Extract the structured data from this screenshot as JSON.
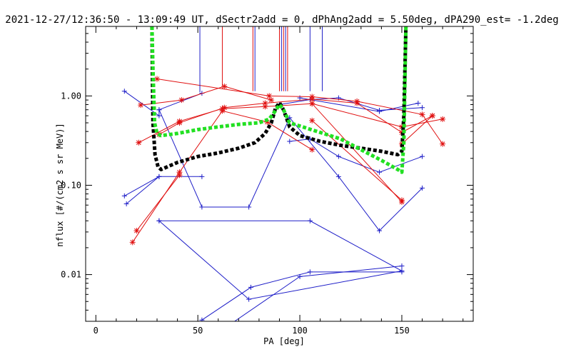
{
  "chart_data": {
    "type": "line",
    "title": "2021-12-27/12:36:50 - 13:09:49 UT, dSectr2add = 0, dPhAng2add = 5.50deg, dPA290_est=  -1.2deg",
    "xlabel": "PA [deg]",
    "ylabel": "nflux [#/(cm2 s sr MeV)]",
    "xlim": [
      -5,
      185
    ],
    "ylim": [
      0.003,
      6
    ],
    "yscale": "log",
    "grid": false,
    "x_ticks": [
      {
        "value": 0,
        "label": "0"
      },
      {
        "value": 50,
        "label": "50"
      },
      {
        "value": 100,
        "label": "100"
      },
      {
        "value": 150,
        "label": "150"
      }
    ],
    "y_ticks": [
      {
        "value": 0.01,
        "label": "0.01"
      },
      {
        "value": 0.1,
        "label": "0.10"
      },
      {
        "value": 1,
        "label": "1.00"
      }
    ],
    "colors": {
      "blue": "#1e1ec8",
      "red": "#e01010",
      "black": "#000000",
      "green": "#22e022"
    },
    "series": [
      {
        "color": "blue",
        "marker": "plus",
        "style": "thin",
        "segments": [
          [
            [
              14,
              1.13
            ],
            [
              31,
              0.6
            ],
            [
              31,
              0.7
            ],
            [
              52,
              1.07
            ]
          ],
          [
            [
              31,
              0.7
            ],
            [
              52,
              0.057
            ],
            [
              75,
              0.057
            ],
            [
              95,
              0.57
            ],
            [
              119,
              0.125
            ],
            [
              139,
              0.031
            ],
            [
              160,
              0.093
            ]
          ],
          [
            [
              14,
              0.076
            ],
            [
              31,
              0.125
            ],
            [
              52,
              0.125
            ]
          ],
          [
            [
              15,
              0.062
            ],
            [
              31,
              0.125
            ]
          ],
          [
            [
              31,
              0.04
            ],
            [
              105,
              0.04
            ],
            [
              150,
              0.011
            ],
            [
              75,
              0.0053
            ],
            [
              31,
              0.04
            ]
          ],
          [
            [
              52,
              0.0031
            ],
            [
              76,
              0.0072
            ],
            [
              105,
              0.0107
            ],
            [
              150,
              0.0107
            ]
          ],
          [
            [
              63,
              0.0025
            ],
            [
              100,
              0.0095
            ],
            [
              150,
              0.0125
            ]
          ],
          [
            [
              90,
              0.8
            ],
            [
              105,
              0.91
            ],
            [
              119,
              0.95
            ],
            [
              139,
              0.69
            ],
            [
              160,
              0.74
            ]
          ],
          [
            [
              95,
              0.31
            ],
            [
              105,
              0.33
            ],
            [
              119,
              0.21
            ],
            [
              139,
              0.14
            ],
            [
              160,
              0.21
            ]
          ],
          [
            [
              100,
              0.95
            ],
            [
              139,
              0.67
            ],
            [
              158,
              0.83
            ]
          ]
        ]
      },
      {
        "color": "red",
        "marker": "asterisk",
        "style": "thin",
        "segments": [
          [
            [
              22,
              0.79
            ],
            [
              42,
              0.9
            ],
            [
              63,
              1.28
            ],
            [
              86,
              0.9
            ]
          ],
          [
            [
              30,
              1.55
            ],
            [
              85,
              1.0
            ],
            [
              106,
              0.98
            ],
            [
              128,
              0.87
            ],
            [
              160,
              0.62
            ],
            [
              170,
              0.29
            ]
          ],
          [
            [
              31,
              0.37
            ],
            [
              41,
              0.5
            ],
            [
              63,
              0.74
            ],
            [
              83,
              0.83
            ],
            [
              106,
              0.92
            ],
            [
              128,
              0.83
            ],
            [
              150,
              0.39
            ],
            [
              165,
              0.6
            ]
          ],
          [
            [
              21,
              0.3
            ],
            [
              41,
              0.52
            ],
            [
              62,
              0.72
            ],
            [
              83,
              0.76
            ],
            [
              106,
              0.82
            ],
            [
              150,
              0.065
            ]
          ],
          [
            [
              18,
              0.023
            ],
            [
              41,
              0.14
            ],
            [
              62,
              0.68
            ],
            [
              84,
              0.51
            ],
            [
              106,
              0.25
            ]
          ],
          [
            [
              20,
              0.031
            ],
            [
              41,
              0.13
            ]
          ],
          [
            [
              106,
              0.53
            ],
            [
              150,
              0.068
            ]
          ],
          [
            [
              106,
              0.82
            ],
            [
              150,
              0.45
            ],
            [
              170,
              0.55
            ]
          ],
          [
            [
              150,
              0.29
            ],
            [
              165,
              0.6
            ]
          ]
        ]
      }
    ],
    "model_curves": [
      {
        "color": "black",
        "points": [
          [
            27.5,
            6
          ],
          [
            28,
            0.5
          ],
          [
            29,
            0.22
          ],
          [
            30.5,
            0.16
          ],
          [
            32,
            0.15
          ],
          [
            40,
            0.18
          ],
          [
            50,
            0.21
          ],
          [
            60,
            0.23
          ],
          [
            70,
            0.26
          ],
          [
            78,
            0.3
          ],
          [
            83,
            0.38
          ],
          [
            86,
            0.5
          ],
          [
            88,
            0.72
          ],
          [
            90,
            0.84
          ],
          [
            92,
            0.7
          ],
          [
            95,
            0.45
          ],
          [
            100,
            0.36
          ],
          [
            110,
            0.31
          ],
          [
            120,
            0.28
          ],
          [
            130,
            0.26
          ],
          [
            140,
            0.24
          ],
          [
            148,
            0.22
          ],
          [
            150,
            0.24
          ],
          [
            151,
            0.6
          ],
          [
            152,
            6
          ]
        ]
      },
      {
        "color": "green",
        "points": [
          [
            27.5,
            6
          ],
          [
            28,
            2.0
          ],
          [
            28.8,
            0.5
          ],
          [
            30,
            0.38
          ],
          [
            32,
            0.36
          ],
          [
            40,
            0.38
          ],
          [
            50,
            0.42
          ],
          [
            60,
            0.45
          ],
          [
            70,
            0.48
          ],
          [
            80,
            0.5
          ],
          [
            85,
            0.55
          ],
          [
            88,
            0.68
          ],
          [
            90,
            0.8
          ],
          [
            92,
            0.7
          ],
          [
            95,
            0.5
          ],
          [
            100,
            0.46
          ],
          [
            110,
            0.39
          ],
          [
            120,
            0.33
          ],
          [
            130,
            0.25
          ],
          [
            140,
            0.19
          ],
          [
            148,
            0.15
          ],
          [
            150,
            0.14
          ],
          [
            151,
            0.3
          ],
          [
            152,
            6
          ]
        ]
      }
    ],
    "vertical_ticks": [
      {
        "x": 51,
        "y_low": 1.1,
        "color": "blue"
      },
      {
        "x": 62,
        "y_low": 1.3,
        "color": "red"
      },
      {
        "x": 77,
        "y_low": 1.13,
        "color": "red"
      },
      {
        "x": 78,
        "y_low": 1.13,
        "color": "blue"
      },
      {
        "x": 90,
        "y_low": 1.13,
        "color": "red"
      },
      {
        "x": 91,
        "y_low": 1.13,
        "color": "blue"
      },
      {
        "x": 92,
        "y_low": 1.13,
        "color": "red"
      },
      {
        "x": 93,
        "y_low": 1.13,
        "color": "blue"
      },
      {
        "x": 94,
        "y_low": 1.13,
        "color": "red"
      },
      {
        "x": 105,
        "y_low": 1.13,
        "color": "blue"
      },
      {
        "x": 111,
        "y_low": 1.13,
        "color": "blue"
      }
    ]
  }
}
